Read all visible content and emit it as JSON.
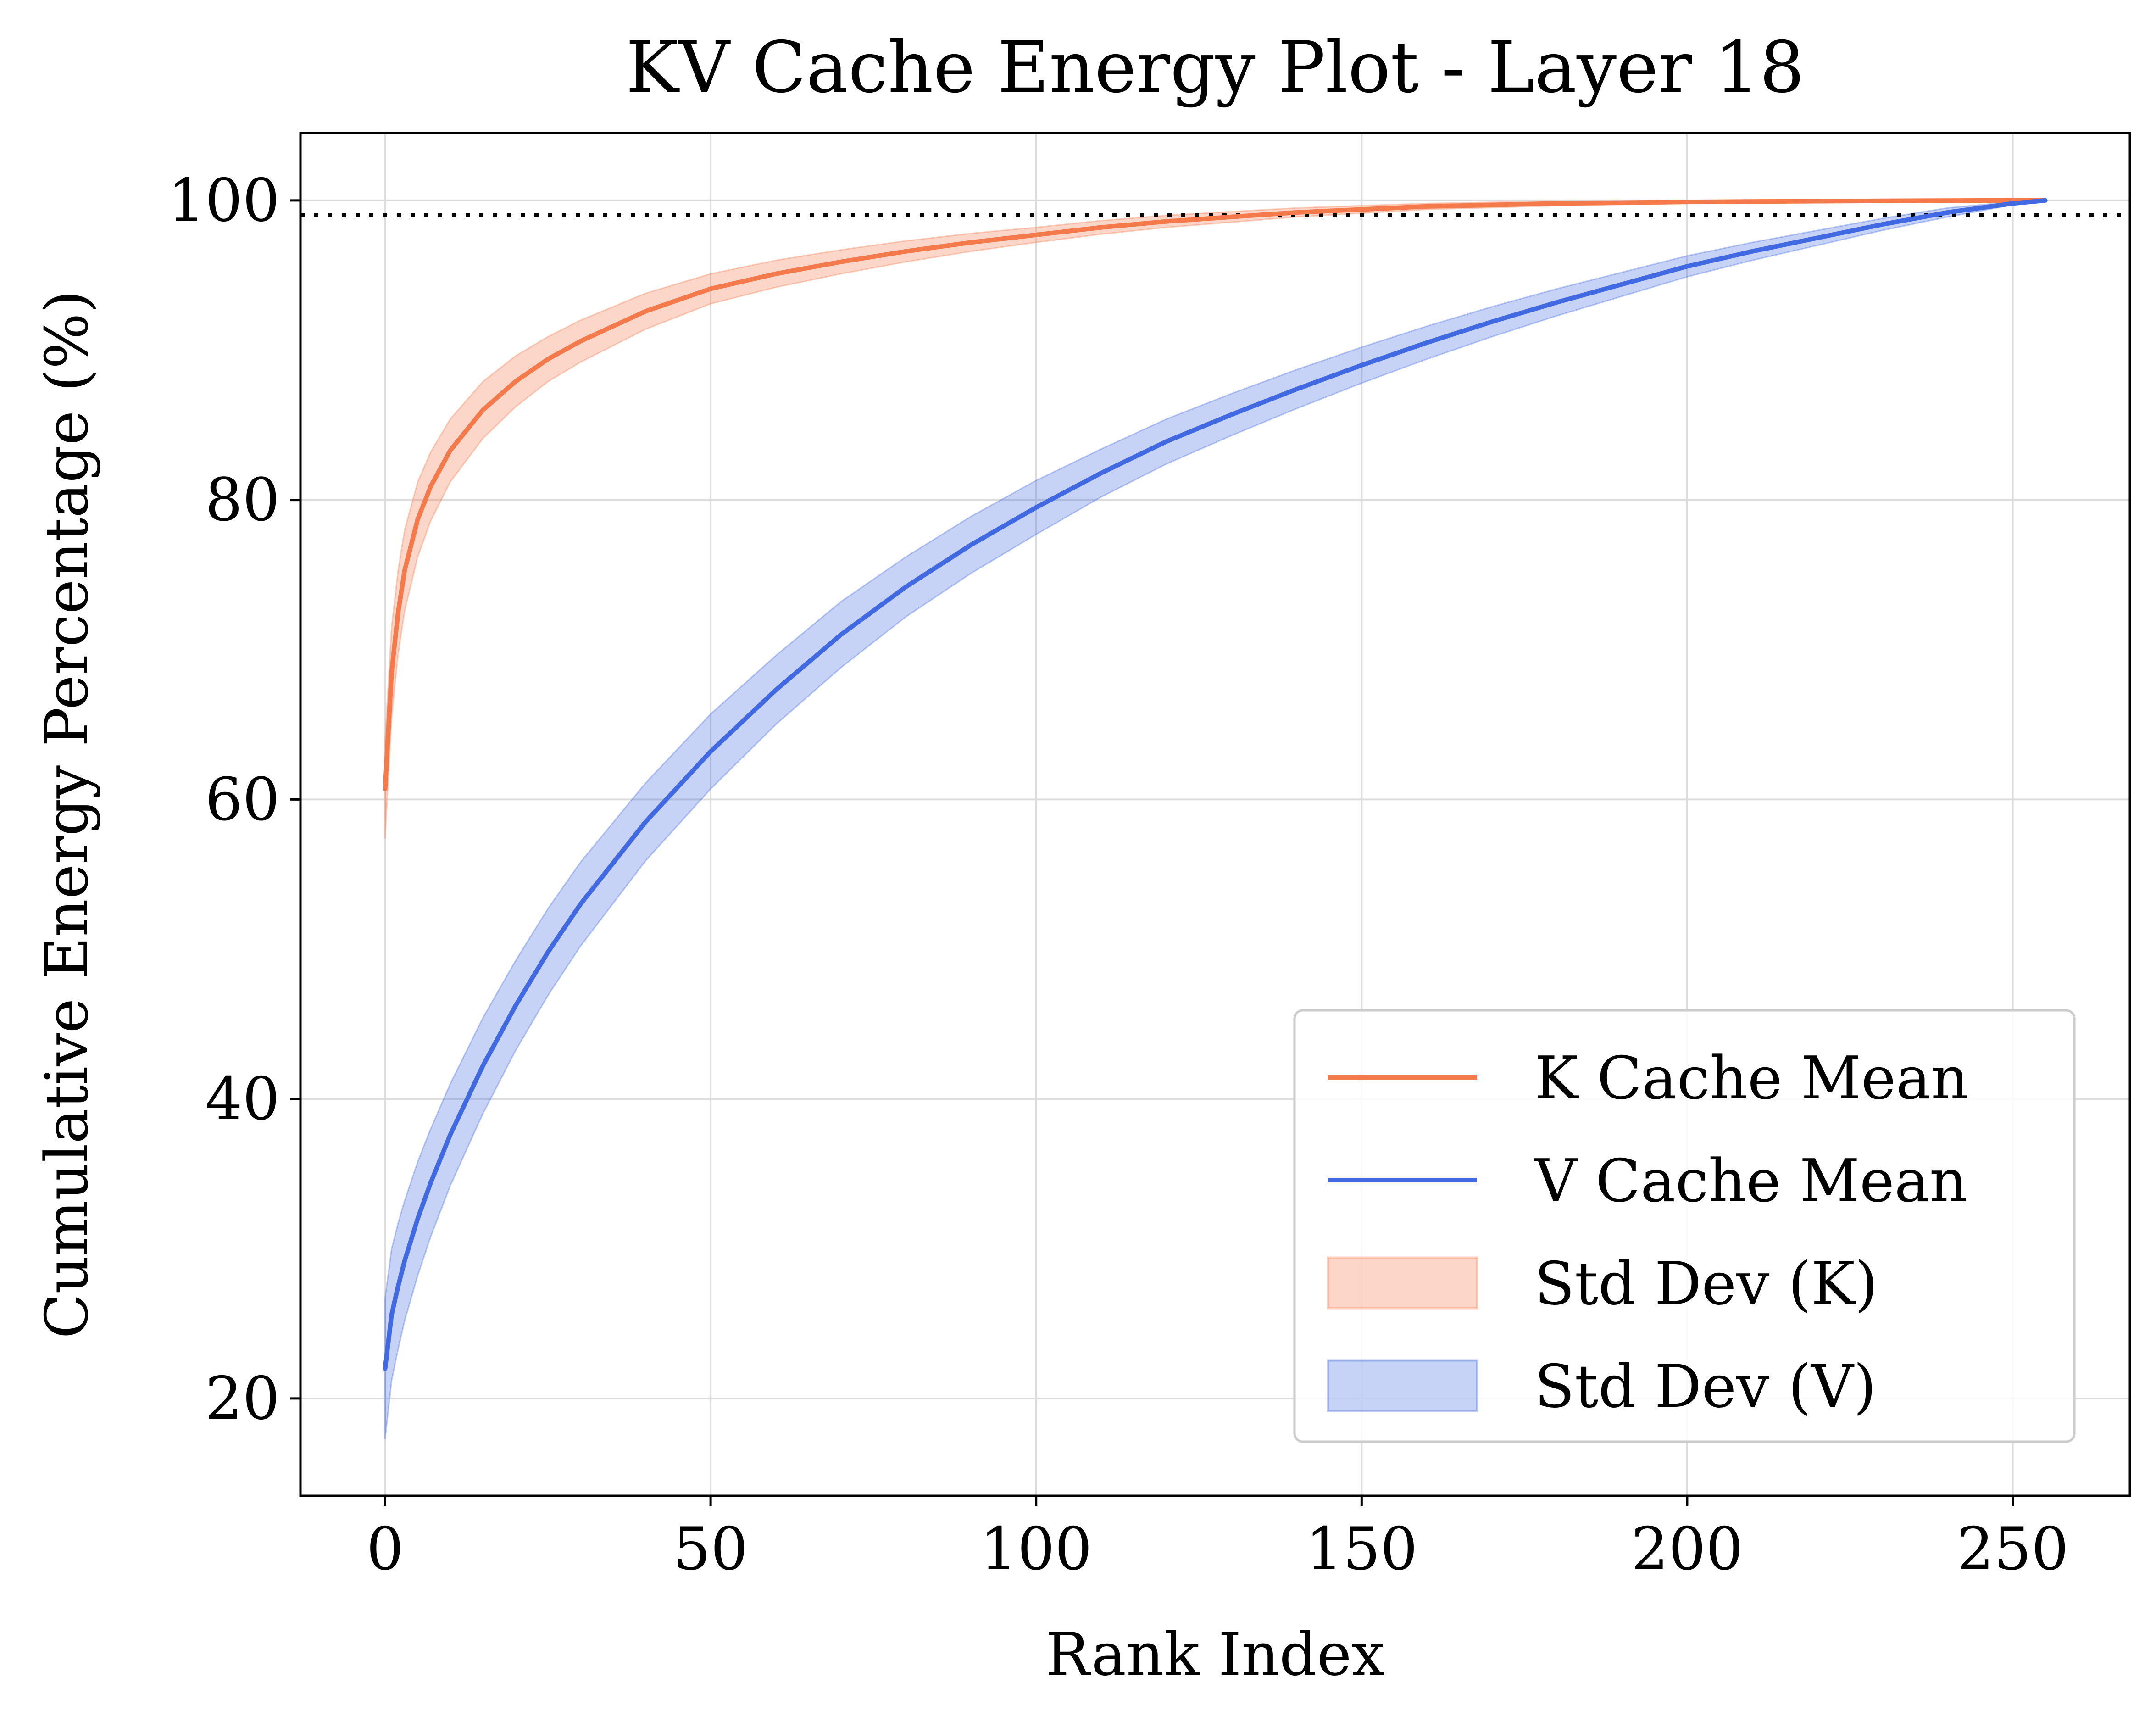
{
  "chart_data": {
    "type": "line",
    "title": "KV Cache Energy Plot - Layer 18",
    "xlabel": "Rank Index",
    "ylabel": "Cumulative Energy Percentage (%)",
    "xlim": [
      -13,
      268
    ],
    "ylim": [
      13.5,
      104.5
    ],
    "xticks": [
      0,
      50,
      100,
      150,
      200,
      250
    ],
    "yticks": [
      20,
      40,
      60,
      80,
      100
    ],
    "grid": true,
    "legend_position": "lower-right",
    "reference_line": {
      "y": 99,
      "style": "dotted",
      "color": "#000000"
    },
    "x": [
      0,
      1,
      2,
      3,
      5,
      7,
      10,
      15,
      20,
      25,
      30,
      40,
      50,
      60,
      70,
      80,
      90,
      100,
      110,
      120,
      130,
      140,
      150,
      160,
      170,
      180,
      190,
      200,
      210,
      220,
      230,
      240,
      250,
      255
    ],
    "series": [
      {
        "name": "K Cache Mean",
        "color": "#f4794b",
        "values": [
          60.7,
          68.5,
          72.5,
          75.3,
          78.7,
          80.9,
          83.3,
          86.0,
          87.9,
          89.4,
          90.6,
          92.6,
          94.1,
          95.1,
          95.9,
          96.6,
          97.2,
          97.7,
          98.2,
          98.6,
          98.9,
          99.2,
          99.4,
          99.6,
          99.7,
          99.8,
          99.85,
          99.9,
          99.93,
          99.95,
          99.97,
          99.99,
          100.0,
          100.0
        ],
        "std": [
          3.3,
          3.0,
          2.8,
          2.7,
          2.5,
          2.3,
          2.1,
          1.9,
          1.7,
          1.5,
          1.4,
          1.2,
          1.0,
          0.9,
          0.8,
          0.7,
          0.6,
          0.5,
          0.45,
          0.4,
          0.35,
          0.3,
          0.25,
          0.2,
          0.18,
          0.15,
          0.12,
          0.1,
          0.08,
          0.06,
          0.05,
          0.03,
          0.01,
          0.0
        ]
      },
      {
        "name": "V Cache Mean",
        "color": "#4169e1",
        "values": [
          22.0,
          25.6,
          27.5,
          29.2,
          32.0,
          34.4,
          37.6,
          42.2,
          46.2,
          49.8,
          53.0,
          58.5,
          63.2,
          67.3,
          71.0,
          74.2,
          77.0,
          79.5,
          81.8,
          83.9,
          85.7,
          87.4,
          89.0,
          90.5,
          91.9,
          93.2,
          94.4,
          95.6,
          96.6,
          97.5,
          98.4,
          99.2,
          99.8,
          100.0
        ],
        "std": [
          4.7,
          4.4,
          4.2,
          4.0,
          3.8,
          3.6,
          3.4,
          3.2,
          3.0,
          2.9,
          2.8,
          2.6,
          2.5,
          2.3,
          2.2,
          2.0,
          1.9,
          1.8,
          1.6,
          1.5,
          1.4,
          1.3,
          1.2,
          1.1,
          1.0,
          0.9,
          0.8,
          0.7,
          0.6,
          0.5,
          0.4,
          0.3,
          0.1,
          0.0
        ]
      }
    ],
    "legend": [
      {
        "label": "K Cache Mean",
        "kind": "line",
        "color": "#f4794b"
      },
      {
        "label": "V Cache Mean",
        "kind": "line",
        "color": "#4169e1"
      },
      {
        "label": "Std Dev (K)",
        "kind": "band",
        "color": "#f4794b"
      },
      {
        "label": "Std Dev (V)",
        "kind": "band",
        "color": "#4169e1"
      }
    ]
  }
}
